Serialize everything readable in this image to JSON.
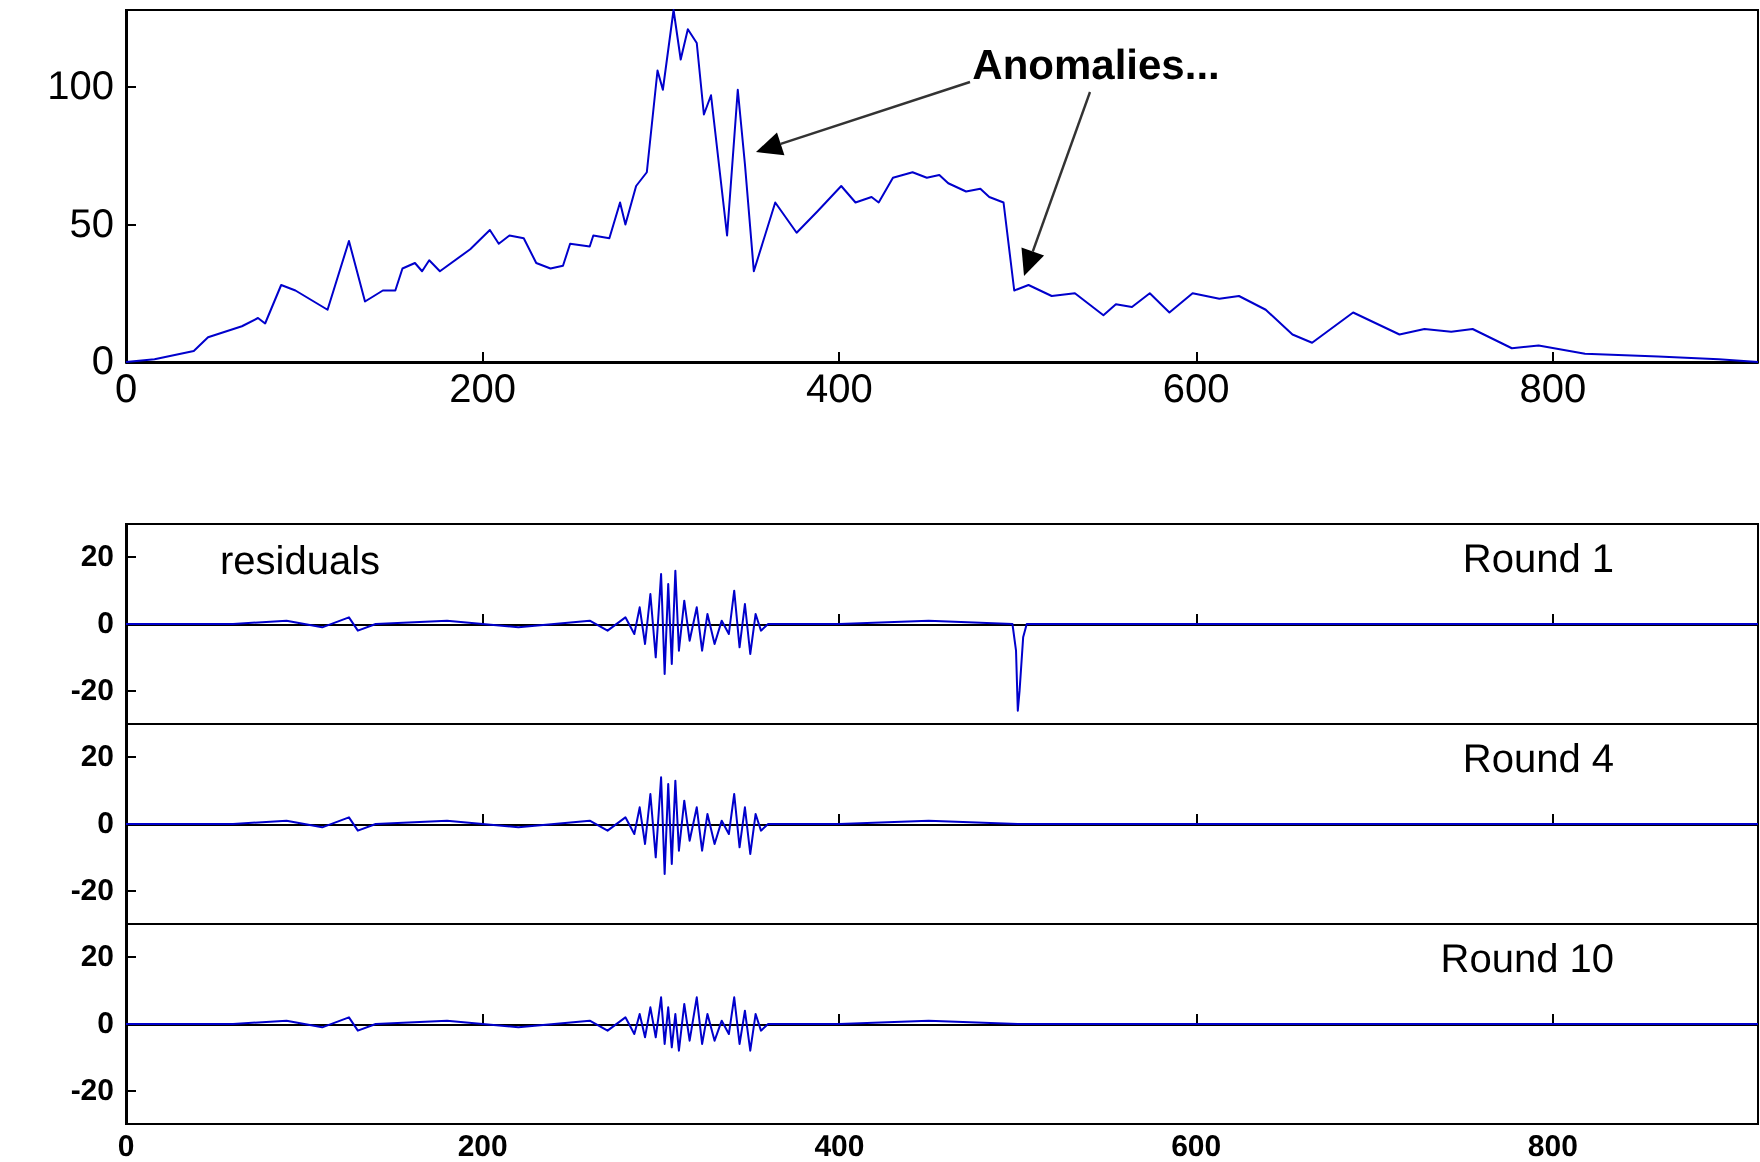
{
  "chart_data": [
    {
      "type": "line",
      "color": "#0000cc",
      "marker": "none",
      "xlim": [
        0,
        915
      ],
      "ylim": [
        0,
        128
      ],
      "xticks": [
        0,
        200,
        400,
        600,
        800
      ],
      "yticks": [
        0,
        50,
        100
      ],
      "x": [
        0,
        16,
        38,
        46,
        65,
        74,
        78,
        87,
        95,
        113,
        125,
        134,
        144,
        151,
        155,
        162,
        166,
        170,
        176,
        193,
        204,
        209,
        215,
        223,
        230,
        238,
        245,
        249,
        260,
        262,
        271,
        277,
        280,
        286,
        292,
        298,
        301,
        307,
        311,
        315,
        320,
        324,
        328,
        337,
        343,
        347,
        352,
        364,
        376,
        388,
        401,
        409,
        418,
        422,
        430,
        441,
        449,
        456,
        461,
        471,
        479,
        484,
        492,
        498,
        506,
        519,
        532,
        548,
        555,
        564,
        574,
        585,
        598,
        613,
        624,
        639,
        654,
        665,
        688,
        714,
        728,
        743,
        755,
        777,
        792,
        818,
        859,
        893,
        915
      ],
      "values": [
        0,
        1,
        4,
        9,
        13,
        16,
        14,
        28,
        26,
        19,
        44,
        22,
        26,
        26,
        34,
        36,
        33,
        37,
        33,
        41,
        48,
        43,
        46,
        45,
        36,
        34,
        35,
        43,
        42,
        46,
        45,
        58,
        50,
        64,
        69,
        106,
        99,
        128,
        110,
        121,
        116,
        90,
        97,
        46,
        99,
        72,
        33,
        58,
        47,
        55,
        64,
        58,
        60,
        58,
        67,
        69,
        67,
        68,
        65,
        62,
        63,
        60,
        58,
        26,
        28,
        24,
        25,
        17,
        21,
        20,
        25,
        18,
        25,
        23,
        24,
        19,
        10,
        7,
        18,
        10,
        12,
        11,
        12,
        5,
        6,
        3,
        2,
        1,
        0
      ],
      "annotations": [
        "Anomalies..."
      ]
    },
    {
      "type": "line",
      "title": "Round 1",
      "color": "#0000cc",
      "marker": "none",
      "tick_labels": "y",
      "xlim": [
        0,
        915
      ],
      "ylim": [
        -30,
        30
      ],
      "xticks": [
        0,
        200,
        400,
        600,
        800
      ],
      "yticks": [
        -20,
        0,
        20
      ],
      "annotations": [
        "residuals"
      ],
      "x": [
        0,
        60,
        90,
        110,
        125,
        130,
        140,
        180,
        220,
        260,
        270,
        280,
        285,
        288,
        291,
        294,
        297,
        300,
        302,
        304,
        306,
        308,
        310,
        313,
        316,
        320,
        323,
        326,
        330,
        334,
        338,
        341,
        344,
        347,
        350,
        353,
        356,
        360,
        400,
        450,
        497,
        499,
        500,
        501,
        503,
        505,
        600,
        700,
        800,
        915
      ],
      "values": [
        0,
        0,
        1,
        -1,
        2,
        -2,
        0,
        1,
        -1,
        1,
        -2,
        2,
        -3,
        5,
        -6,
        9,
        -10,
        15,
        -15,
        12,
        -12,
        16,
        -8,
        7,
        -5,
        5,
        -8,
        3,
        -6,
        1,
        -3,
        10,
        -7,
        6,
        -9,
        3,
        -2,
        0,
        0,
        1,
        0,
        -8,
        -26,
        -20,
        -4,
        0,
        0,
        0,
        0,
        0
      ]
    },
    {
      "type": "line",
      "title": "Round 4",
      "color": "#0000cc",
      "marker": "none",
      "tick_labels": "y",
      "xlim": [
        0,
        915
      ],
      "ylim": [
        -30,
        30
      ],
      "xticks": [
        0,
        200,
        400,
        600,
        800
      ],
      "yticks": [
        -20,
        0,
        20
      ],
      "x": [
        0,
        60,
        90,
        110,
        125,
        130,
        140,
        180,
        220,
        260,
        270,
        280,
        285,
        288,
        291,
        294,
        297,
        300,
        302,
        304,
        306,
        308,
        310,
        313,
        316,
        320,
        323,
        326,
        330,
        334,
        338,
        341,
        344,
        347,
        350,
        353,
        356,
        360,
        400,
        450,
        500,
        600,
        700,
        800,
        915
      ],
      "values": [
        0,
        0,
        1,
        -1,
        2,
        -2,
        0,
        1,
        -1,
        1,
        -2,
        2,
        -3,
        5,
        -6,
        9,
        -10,
        14,
        -15,
        12,
        -12,
        13,
        -8,
        7,
        -5,
        5,
        -8,
        3,
        -6,
        1,
        -3,
        9,
        -7,
        5,
        -9,
        3,
        -2,
        0,
        0,
        1,
        0,
        0,
        0,
        0,
        0
      ]
    },
    {
      "type": "line",
      "title": "Round 10",
      "color": "#0000cc",
      "marker": "none",
      "xlim": [
        0,
        915
      ],
      "ylim": [
        -30,
        30
      ],
      "xticks": [
        0,
        200,
        400,
        600,
        800
      ],
      "yticks": [
        -20,
        0,
        20
      ],
      "x": [
        0,
        60,
        90,
        110,
        125,
        130,
        140,
        180,
        220,
        260,
        270,
        280,
        285,
        288,
        291,
        294,
        297,
        300,
        302,
        304,
        306,
        308,
        310,
        313,
        316,
        320,
        323,
        326,
        330,
        334,
        338,
        341,
        344,
        347,
        350,
        353,
        356,
        360,
        400,
        450,
        500,
        600,
        700,
        800,
        915
      ],
      "values": [
        0,
        0,
        1,
        -1,
        2,
        -2,
        0,
        1,
        -1,
        1,
        -2,
        2,
        -3,
        3,
        -4,
        5,
        -4,
        8,
        -6,
        5,
        -7,
        3,
        -8,
        6,
        -5,
        8,
        -6,
        3,
        -5,
        1,
        -3,
        8,
        -6,
        4,
        -8,
        3,
        -2,
        0,
        0,
        1,
        0,
        0,
        0,
        0,
        0
      ]
    }
  ]
}
